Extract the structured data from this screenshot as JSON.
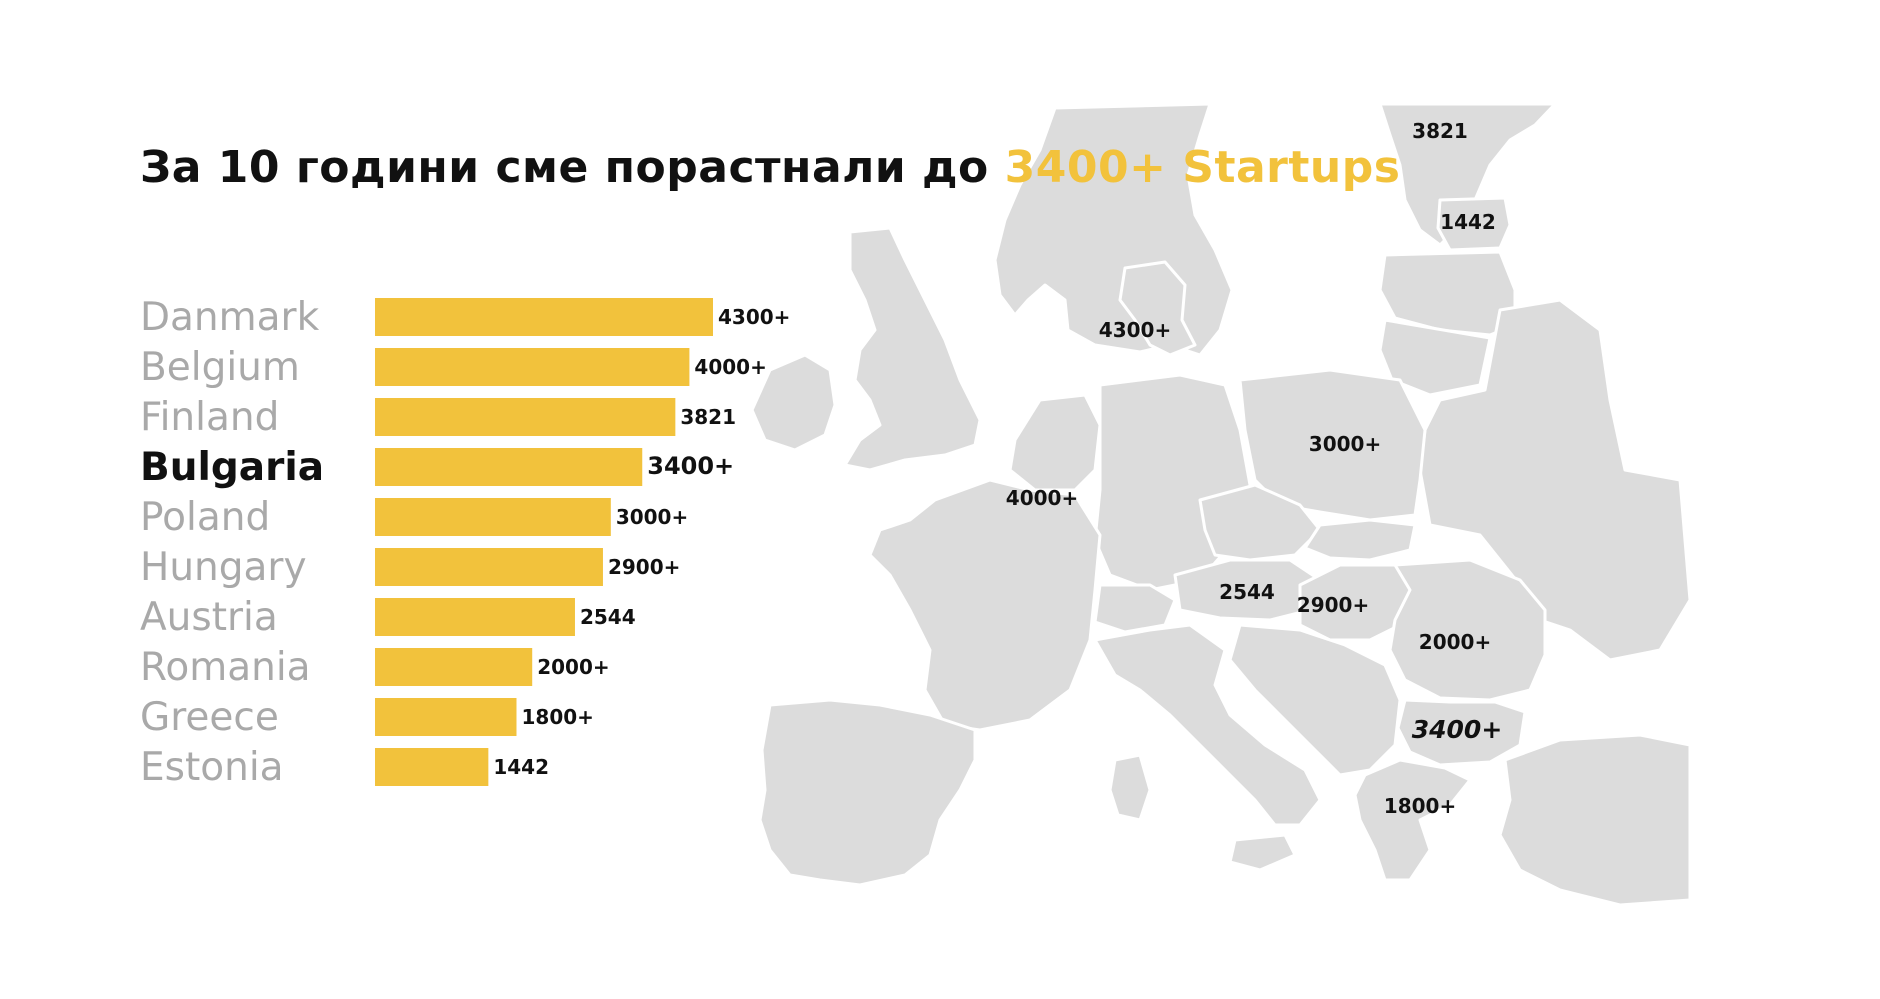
{
  "title": {
    "prefix": "За 10 години сме порастнали до ",
    "accent": "3400+ Startups",
    "accent_color": "#F2C23C"
  },
  "colors": {
    "bar": "#F2C23C",
    "land": "#DCDCDC",
    "border": "#FFFFFF",
    "label_muted": "#A9A9A9",
    "label_highlight": "#111111"
  },
  "chart_data": {
    "type": "bar",
    "orientation": "horizontal",
    "categories": [
      "Danmark",
      "Belgium",
      "Finland",
      "Bulgaria",
      "Poland",
      "Hungary",
      "Austria",
      "Romania",
      "Greece",
      "Estonia"
    ],
    "values": [
      4300,
      4000,
      3821,
      3400,
      3000,
      2900,
      2544,
      2000,
      1800,
      1442
    ],
    "value_labels": [
      "4300+",
      "4000+",
      "3821",
      "3400+",
      "3000+",
      "2900+",
      "2544",
      "2000+",
      "1800+",
      "1442"
    ],
    "highlight": "Bulgaria",
    "xlim": [
      0,
      4300
    ],
    "grid": false
  },
  "map_labels": [
    {
      "country": "Finland",
      "label": "3821"
    },
    {
      "country": "Estonia",
      "label": "1442"
    },
    {
      "country": "Danmark",
      "label": "4300+"
    },
    {
      "country": "Poland",
      "label": "3000+"
    },
    {
      "country": "Belgium",
      "label": "4000+"
    },
    {
      "country": "Austria",
      "label": "2544"
    },
    {
      "country": "Hungary",
      "label": "2900+"
    },
    {
      "country": "Romania",
      "label": "2000+"
    },
    {
      "country": "Bulgaria",
      "label": "3400+"
    },
    {
      "country": "Greece",
      "label": "1800+"
    }
  ]
}
